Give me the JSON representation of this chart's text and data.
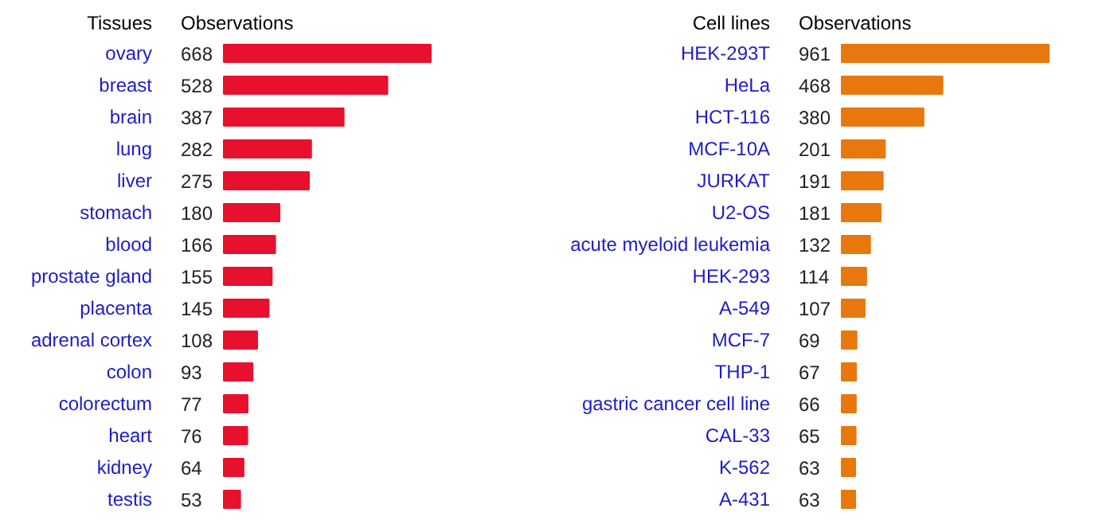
{
  "chart_data": [
    {
      "type": "bar",
      "orientation": "horizontal",
      "ylabel": "Tissues",
      "xlabel": "Observations",
      "data_labels": true,
      "categories": [
        "ovary",
        "breast",
        "brain",
        "lung",
        "liver",
        "stomach",
        "blood",
        "prostate gland",
        "placenta",
        "adrenal cortex",
        "colon",
        "colorectum",
        "heart",
        "kidney",
        "testis"
      ],
      "values": [
        668,
        528,
        387,
        282,
        275,
        180,
        166,
        155,
        145,
        108,
        93,
        77,
        76,
        64,
        53
      ],
      "color": "#e8112d"
    },
    {
      "type": "bar",
      "orientation": "horizontal",
      "ylabel": "Cell lines",
      "xlabel": "Observations",
      "data_labels": true,
      "categories": [
        "HEK-293T",
        "HeLa",
        "HCT-116",
        "MCF-10A",
        "JURKAT",
        "U2-OS",
        "acute myeloid leukemia",
        "HEK-293",
        "A-549",
        "MCF-7",
        "THP-1",
        "gastric cancer cell line",
        "CAL-33",
        "K-562",
        "A-431"
      ],
      "values": [
        961,
        468,
        380,
        201,
        191,
        181,
        132,
        114,
        107,
        69,
        67,
        66,
        65,
        63,
        63
      ],
      "color": "#e8770e"
    }
  ]
}
